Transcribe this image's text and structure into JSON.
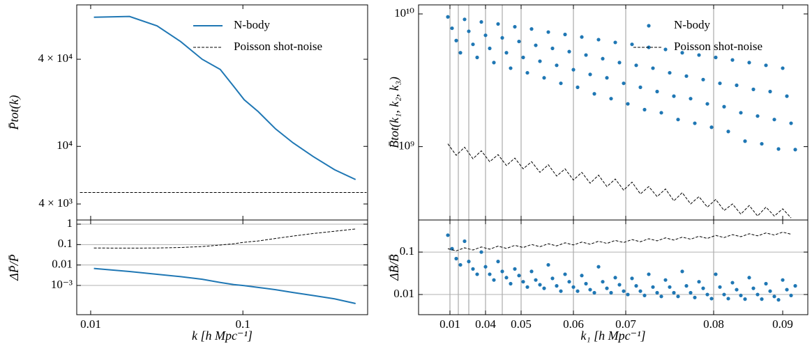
{
  "chart_data": [
    {
      "type": "line",
      "xlog": true,
      "ylog": true,
      "xlim": [
        0.0081,
        0.66
      ],
      "ylim": [
        3100,
        95000
      ],
      "xticks": [
        0.01,
        0.1
      ],
      "show_xticklabels": false,
      "yticks": [
        {
          "value": 40000,
          "label": "4 × 10⁴"
        },
        {
          "value": 10000,
          "label": "10⁴"
        },
        {
          "value": 4000,
          "label": "4 × 10³"
        }
      ],
      "ylabel": "P̄tot(k)",
      "legend": "upper right",
      "series": [
        {
          "name": "N-body",
          "color": "#1f77b4",
          "style": "solid",
          "x": [
            0.0105,
            0.018,
            0.0273,
            0.039,
            0.054,
            0.071,
            0.087,
            0.102,
            0.126,
            0.164,
            0.213,
            0.29,
            0.4,
            0.55
          ],
          "values": [
            78000,
            79000,
            68000,
            53000,
            40000,
            34000,
            26000,
            21000,
            17400,
            13200,
            10600,
            8500,
            6900,
            5900
          ]
        },
        {
          "name": "Poisson shot-noise",
          "color": "#000000",
          "style": "dashed",
          "x": [
            0.0085,
            0.65
          ],
          "values": [
            4800,
            4800
          ]
        }
      ]
    },
    {
      "type": "line",
      "xlog": true,
      "ylog": true,
      "xlim": [
        0.0081,
        0.66
      ],
      "ylim": [
        3.7e-05,
        1.6
      ],
      "xticks": [
        0.01,
        0.1
      ],
      "yticks": [
        1,
        0.1,
        0.01,
        {
          "value": 0.001,
          "label": "10⁻³"
        }
      ],
      "grid": "y",
      "ylabel": "ΔP̄/P̄",
      "xlabel": "k [h Mpc⁻¹]",
      "series": [
        {
          "color": "#1f77b4",
          "style": "solid",
          "x": [
            0.0105,
            0.018,
            0.0273,
            0.039,
            0.054,
            0.071,
            0.087,
            0.102,
            0.126,
            0.164,
            0.213,
            0.29,
            0.4,
            0.55
          ],
          "values": [
            0.0068,
            0.0048,
            0.0035,
            0.0027,
            0.002,
            0.0014,
            0.0011,
            0.00098,
            0.0008,
            0.00062,
            0.00045,
            0.00032,
            0.00022,
            0.00013
          ]
        },
        {
          "color": "#000000",
          "style": "dashed",
          "x": [
            0.0105,
            0.018,
            0.0273,
            0.039,
            0.054,
            0.071,
            0.087,
            0.102,
            0.126,
            0.164,
            0.213,
            0.29,
            0.4,
            0.55
          ],
          "values": [
            0.068,
            0.067,
            0.068,
            0.072,
            0.08,
            0.095,
            0.11,
            0.13,
            0.15,
            0.2,
            0.26,
            0.35,
            0.45,
            0.58
          ]
        }
      ]
    },
    {
      "type": "scatter",
      "ylog": true,
      "xlim": [
        0,
        186
      ],
      "ylim": [
        280000000,
        11700000000
      ],
      "xticks": [
        {
          "value": 15,
          "label": "0.01"
        },
        {
          "value": 32,
          "label": "0.04"
        },
        {
          "value": 49,
          "label": "0.05"
        },
        {
          "value": 74,
          "label": "0.06"
        },
        {
          "value": 99,
          "label": "0.07"
        },
        {
          "value": 141,
          "label": "0.08"
        },
        {
          "value": 174,
          "label": "0.09"
        }
      ],
      "show_xticklabels": false,
      "vlines": [
        15,
        19,
        24,
        32,
        40,
        49,
        74,
        99,
        141
      ],
      "yticks": [
        {
          "value": 10000000000,
          "label": "10¹⁰"
        },
        {
          "value": 1000000000,
          "label": "10⁹"
        }
      ],
      "ylabel": "B̄tot(k₁, k₂, k₃)",
      "legend": "upper right",
      "series": [
        {
          "name": "N-body",
          "color": "#1f77b4",
          "kind": "scatter",
          "x": [
            14,
            16,
            18,
            20,
            22,
            24,
            26,
            28,
            30,
            32,
            34,
            36,
            38,
            40,
            42,
            44,
            46,
            48,
            50,
            52,
            54,
            56,
            58,
            60,
            62,
            64,
            66,
            68,
            70,
            72,
            74,
            76,
            78,
            80,
            82,
            84,
            86,
            88,
            90,
            92,
            94,
            96,
            98,
            100,
            102,
            104,
            106,
            108,
            110,
            112,
            114,
            116,
            118,
            120,
            122,
            124,
            126,
            128,
            130,
            132,
            134,
            136,
            138,
            140,
            142,
            144,
            146,
            148,
            150,
            152,
            154,
            156,
            158,
            160,
            162,
            164,
            166,
            168,
            170,
            172,
            174,
            176,
            178,
            180
          ],
          "values": [
            9500000000.0,
            7800000000.0,
            6300000000.0,
            5100000000.0,
            9100000000.0,
            7400000000.0,
            5900000000.0,
            4700000000.0,
            8700000000.0,
            6900000000.0,
            5500000000.0,
            4300000000.0,
            8400000000.0,
            6600000000.0,
            5100000000.0,
            3900000000.0,
            8000000000.0,
            6200000000.0,
            4700000000.0,
            3600000000.0,
            7700000000.0,
            5800000000.0,
            4400000000.0,
            3300000000.0,
            7300000000.0,
            5500000000.0,
            4100000000.0,
            3000000000.0,
            7000000000.0,
            5200000000.0,
            3800000000.0,
            2800000000.0,
            6700000000.0,
            4900000000.0,
            3500000000.0,
            2500000000.0,
            6400000000.0,
            4600000000.0,
            3300000000.0,
            2300000000.0,
            6100000000.0,
            4300000000.0,
            3000000000.0,
            2100000000.0,
            5900000000.0,
            4100000000.0,
            2800000000.0,
            1900000000.0,
            5600000000.0,
            3900000000.0,
            2600000000.0,
            1800000000.0,
            5400000000.0,
            3600000000.0,
            2400000000.0,
            1600000000.0,
            5100000000.0,
            3400000000.0,
            2300000000.0,
            1500000000.0,
            4900000000.0,
            3200000000.0,
            2100000000.0,
            1400000000.0,
            4700000000.0,
            3000000000.0,
            2000000000.0,
            1300000000.0,
            4500000000.0,
            2900000000.0,
            1800000000.0,
            1100000000.0,
            4300000000.0,
            2700000000.0,
            1700000000.0,
            1050000000.0,
            4100000000.0,
            2600000000.0,
            1600000000.0,
            960000000.0,
            3900000000.0,
            2400000000.0,
            1500000000.0,
            950000000.0
          ]
        },
        {
          "name": "Poisson shot-noise",
          "color": "#000000",
          "style": "dashed",
          "x": [
            14,
            18,
            22,
            26,
            30,
            34,
            38,
            42,
            46,
            50,
            54,
            58,
            62,
            66,
            70,
            74,
            78,
            82,
            86,
            90,
            94,
            98,
            102,
            106,
            110,
            114,
            118,
            122,
            126,
            130,
            134,
            138,
            142,
            146,
            150,
            154,
            158,
            162,
            166,
            170,
            174,
            178
          ],
          "values": [
            1050000000.0,
            860000000.0,
            990000000.0,
            810000000.0,
            930000000.0,
            770000000.0,
            870000000.0,
            720000000.0,
            820000000.0,
            680000000.0,
            770000000.0,
            640000000.0,
            730000000.0,
            600000000.0,
            680000000.0,
            560000000.0,
            640000000.0,
            530000000.0,
            610000000.0,
            500000000.0,
            570000000.0,
            470000000.0,
            540000000.0,
            440000000.0,
            500000000.0,
            420000000.0,
            480000000.0,
            390000000.0,
            450000000.0,
            370000000.0,
            420000000.0,
            350000000.0,
            400000000.0,
            330000000.0,
            370000000.0,
            310000000.0,
            360000000.0,
            300000000.0,
            350000000.0,
            300000000.0,
            340000000.0,
            290000000.0
          ]
        }
      ]
    },
    {
      "type": "scatter",
      "ylog": true,
      "xlim": [
        0,
        186
      ],
      "ylim": [
        0.00335,
        0.57
      ],
      "xticks": [
        {
          "value": 15,
          "label": "0.01"
        },
        {
          "value": 32,
          "label": "0.04"
        },
        {
          "value": 49,
          "label": "0.05"
        },
        {
          "value": 74,
          "label": "0.06"
        },
        {
          "value": 99,
          "label": "0.07"
        },
        {
          "value": 141,
          "label": "0.08"
        },
        {
          "value": 174,
          "label": "0.09"
        }
      ],
      "vlines": [
        15,
        19,
        24,
        32,
        40,
        49,
        74,
        99,
        141
      ],
      "yticks": [
        0.1,
        0.01
      ],
      "grid": "y",
      "ylabel": "ΔB̄/B̄",
      "xlabel": "k₁ [h Mpc⁻¹]",
      "series": [
        {
          "color": "#1f77b4",
          "kind": "scatter",
          "x": [
            14,
            16,
            18,
            20,
            22,
            24,
            26,
            28,
            30,
            32,
            34,
            36,
            38,
            40,
            42,
            44,
            46,
            48,
            50,
            52,
            54,
            56,
            58,
            60,
            62,
            64,
            66,
            68,
            70,
            72,
            74,
            76,
            78,
            80,
            82,
            84,
            86,
            88,
            90,
            92,
            94,
            96,
            98,
            100,
            102,
            104,
            106,
            108,
            110,
            112,
            114,
            116,
            118,
            120,
            122,
            124,
            126,
            128,
            130,
            132,
            134,
            136,
            138,
            140,
            142,
            144,
            146,
            148,
            150,
            152,
            154,
            156,
            158,
            160,
            162,
            164,
            166,
            168,
            170,
            172,
            174,
            176,
            178,
            180
          ],
          "values": [
            0.25,
            0.12,
            0.07,
            0.05,
            0.18,
            0.06,
            0.04,
            0.03,
            0.1,
            0.045,
            0.03,
            0.022,
            0.06,
            0.035,
            0.025,
            0.018,
            0.04,
            0.028,
            0.02,
            0.015,
            0.035,
            0.022,
            0.017,
            0.014,
            0.05,
            0.024,
            0.016,
            0.012,
            0.03,
            0.02,
            0.015,
            0.012,
            0.028,
            0.018,
            0.013,
            0.011,
            0.045,
            0.02,
            0.014,
            0.011,
            0.025,
            0.017,
            0.012,
            0.01,
            0.024,
            0.016,
            0.012,
            0.0095,
            0.03,
            0.015,
            0.011,
            0.009,
            0.022,
            0.015,
            0.011,
            0.009,
            0.035,
            0.016,
            0.011,
            0.0085,
            0.02,
            0.014,
            0.01,
            0.008,
            0.03,
            0.015,
            0.01,
            0.008,
            0.019,
            0.013,
            0.0095,
            0.0078,
            0.025,
            0.014,
            0.01,
            0.0078,
            0.018,
            0.012,
            0.009,
            0.0075,
            0.022,
            0.013,
            0.0095,
            0.016
          ]
        },
        {
          "color": "#000000",
          "style": "dashed",
          "x": [
            14,
            18,
            22,
            26,
            30,
            34,
            38,
            42,
            46,
            50,
            54,
            58,
            62,
            66,
            70,
            74,
            78,
            82,
            86,
            90,
            94,
            98,
            102,
            106,
            110,
            114,
            118,
            122,
            126,
            130,
            134,
            138,
            142,
            146,
            150,
            154,
            158,
            162,
            166,
            170,
            174,
            178
          ],
          "values": [
            0.12,
            0.107,
            0.126,
            0.112,
            0.132,
            0.117,
            0.138,
            0.122,
            0.144,
            0.128,
            0.151,
            0.134,
            0.157,
            0.14,
            0.165,
            0.147,
            0.172,
            0.153,
            0.18,
            0.16,
            0.188,
            0.168,
            0.197,
            0.175,
            0.206,
            0.184,
            0.216,
            0.192,
            0.225,
            0.201,
            0.236,
            0.21,
            0.247,
            0.22,
            0.258,
            0.23,
            0.27,
            0.241,
            0.282,
            0.252,
            0.295,
            0.263
          ]
        }
      ]
    }
  ]
}
